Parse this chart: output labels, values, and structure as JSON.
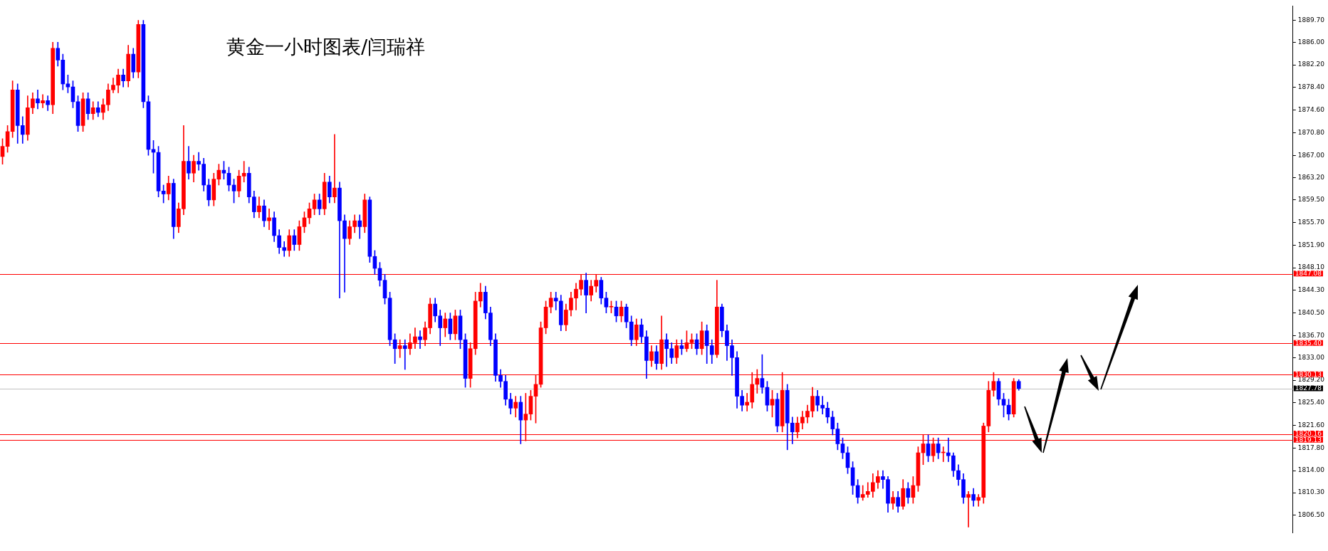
{
  "chart_data": {
    "type": "candlestick",
    "title": "黄金一小时图表/闫瑞祥",
    "categories": [
      null,
      null,
      null,
      null,
      null,
      null,
      null,
      null,
      null,
      null,
      null,
      null,
      null,
      null,
      null,
      null,
      null,
      null,
      null,
      null,
      null,
      null,
      null,
      null,
      null,
      null,
      null,
      null,
      null,
      null,
      null,
      null,
      null,
      null,
      null,
      null,
      null,
      null,
      null,
      null,
      null,
      null,
      null,
      null,
      null,
      null,
      null,
      null,
      null,
      null,
      null,
      null,
      null,
      null,
      null,
      null,
      null,
      null,
      null,
      null,
      null,
      null,
      null,
      null,
      null,
      null,
      null,
      null,
      null,
      null,
      null,
      null,
      null,
      null,
      null,
      null,
      null,
      null,
      null,
      null,
      null,
      null,
      null,
      null,
      null,
      null,
      null,
      null,
      null,
      null,
      null,
      null,
      null,
      null,
      null,
      null,
      null,
      null,
      null,
      null,
      null,
      null,
      null,
      null,
      null,
      null,
      null,
      null,
      null,
      null,
      null,
      null,
      null,
      null,
      null,
      null,
      null,
      null,
      null,
      null,
      null,
      null,
      null,
      null,
      null,
      null,
      null,
      null,
      null,
      null,
      null,
      null,
      null,
      null,
      null,
      null,
      null,
      null,
      null,
      null,
      null,
      null,
      null,
      null,
      null,
      null,
      null,
      null,
      null,
      null,
      null,
      null,
      null,
      null,
      null,
      null,
      null,
      null,
      null,
      null,
      null,
      null,
      null,
      null,
      null,
      null,
      null,
      null,
      null,
      null,
      null,
      null,
      null,
      null,
      null,
      null,
      null,
      null,
      null,
      null,
      null,
      null,
      null,
      null,
      null,
      null,
      null,
      null,
      null,
      null,
      null,
      null,
      null,
      null,
      null,
      null,
      null,
      null,
      null,
      null,
      null,
      null,
      null,
      null,
      null,
      null,
      null,
      null,
      null,
      null,
      null,
      null,
      null,
      null,
      null,
      null,
      null,
      null,
      null,
      null,
      null,
      null,
      null,
      null,
      null,
      null,
      null,
      null,
      null,
      null,
      null,
      null,
      null,
      null,
      null,
      null,
      null,
      null,
      null,
      null,
      null,
      null,
      null,
      null,
      null,
      null,
      null,
      null,
      null,
      null,
      null,
      null,
      null,
      null,
      null,
      null,
      null
    ],
    "ohlc": [
      [
        1866.8,
        1869.8,
        1865.5,
        1868.5
      ],
      [
        1868.5,
        1872.0,
        1867.5,
        1871.0
      ],
      [
        1871.0,
        1879.5,
        1870.0,
        1878.0
      ],
      [
        1878.0,
        1879.0,
        1869.0,
        1872.0
      ],
      [
        1872.0,
        1873.5,
        1869.0,
        1870.5
      ],
      [
        1870.5,
        1877.0,
        1869.5,
        1875.0
      ],
      [
        1875.0,
        1877.5,
        1874.0,
        1876.5
      ],
      [
        1876.5,
        1878.0,
        1874.8,
        1875.8
      ],
      [
        1875.8,
        1877.2,
        1875.0,
        1876.2
      ],
      [
        1876.2,
        1877.0,
        1874.5,
        1875.5
      ],
      [
        1875.5,
        1886.0,
        1874.0,
        1885.0
      ],
      [
        1885.0,
        1886.0,
        1882.0,
        1883.0
      ],
      [
        1883.0,
        1884.0,
        1878.0,
        1879.0
      ],
      [
        1879.0,
        1880.5,
        1877.5,
        1878.5
      ],
      [
        1878.5,
        1879.5,
        1875.0,
        1876.0
      ],
      [
        1876.0,
        1877.0,
        1871.0,
        1872.0
      ],
      [
        1872.0,
        1877.5,
        1871.0,
        1876.5
      ],
      [
        1876.5,
        1877.5,
        1873.0,
        1874.0
      ],
      [
        1874.0,
        1876.0,
        1873.0,
        1875.0
      ],
      [
        1875.0,
        1876.0,
        1873.5,
        1874.2
      ],
      [
        1874.2,
        1876.5,
        1873.0,
        1875.5
      ],
      [
        1875.5,
        1879.0,
        1874.5,
        1878.0
      ],
      [
        1878.0,
        1880.0,
        1877.5,
        1878.8
      ],
      [
        1878.8,
        1881.5,
        1877.5,
        1880.5
      ],
      [
        1880.5,
        1881.5,
        1878.5,
        1879.5
      ],
      [
        1879.5,
        1885.5,
        1878.5,
        1884.0
      ],
      [
        1884.0,
        1885.0,
        1880.0,
        1881.0
      ],
      [
        1881.0,
        1889.7,
        1880.0,
        1889.0
      ],
      [
        1889.0,
        1889.7,
        1875.0,
        1876.0
      ],
      [
        1876.0,
        1877.0,
        1867.0,
        1868.0
      ],
      [
        1868.0,
        1869.5,
        1864.0,
        1867.5
      ],
      [
        1867.5,
        1868.5,
        1860.0,
        1861.0
      ],
      [
        1861.0,
        1862.0,
        1859.0,
        1860.5
      ],
      [
        1860.5,
        1863.5,
        1859.5,
        1862.3
      ],
      [
        1862.3,
        1863.0,
        1853.0,
        1855.0
      ],
      [
        1855.0,
        1859.0,
        1854.0,
        1858.0
      ],
      [
        1858.0,
        1872.0,
        1857.0,
        1866.0
      ],
      [
        1866.0,
        1868.5,
        1863.0,
        1864.0
      ],
      [
        1864.0,
        1867.0,
        1862.5,
        1866.0
      ],
      [
        1866.0,
        1867.5,
        1864.5,
        1865.5
      ],
      [
        1865.5,
        1866.5,
        1861.0,
        1862.0
      ],
      [
        1862.0,
        1863.0,
        1858.5,
        1859.5
      ],
      [
        1859.5,
        1864.0,
        1858.5,
        1863.0
      ],
      [
        1863.0,
        1865.5,
        1862.0,
        1864.5
      ],
      [
        1864.5,
        1866.0,
        1863.0,
        1864.0
      ],
      [
        1864.0,
        1865.0,
        1861.0,
        1862.0
      ],
      [
        1862.0,
        1863.0,
        1859.0,
        1861.0
      ],
      [
        1861.0,
        1864.5,
        1860.0,
        1863.5
      ],
      [
        1863.5,
        1866.0,
        1862.5,
        1864.0
      ],
      [
        1864.0,
        1865.0,
        1859.0,
        1860.0
      ],
      [
        1860.0,
        1861.0,
        1856.5,
        1857.5
      ],
      [
        1857.5,
        1860.0,
        1856.5,
        1858.5
      ],
      [
        1858.5,
        1859.5,
        1855.0,
        1856.0
      ],
      [
        1856.0,
        1858.0,
        1854.5,
        1856.5
      ],
      [
        1856.5,
        1857.5,
        1852.5,
        1853.5
      ],
      [
        1853.5,
        1854.5,
        1850.5,
        1851.5
      ],
      [
        1851.5,
        1852.5,
        1850.0,
        1851.0
      ],
      [
        1851.0,
        1854.5,
        1850.0,
        1853.5
      ],
      [
        1853.5,
        1854.5,
        1851.0,
        1852.0
      ],
      [
        1852.0,
        1856.0,
        1851.0,
        1855.0
      ],
      [
        1855.0,
        1857.5,
        1854.0,
        1856.5
      ],
      [
        1856.5,
        1859.0,
        1855.5,
        1858.0
      ],
      [
        1858.0,
        1860.5,
        1857.0,
        1859.5
      ],
      [
        1859.5,
        1860.5,
        1857.0,
        1858.0
      ],
      [
        1858.0,
        1864.0,
        1857.0,
        1862.5
      ],
      [
        1862.5,
        1863.5,
        1859.0,
        1860.0
      ],
      [
        1860.0,
        1870.5,
        1859.0,
        1861.5
      ],
      [
        1861.5,
        1862.5,
        1843.0,
        1856.0
      ],
      [
        1856.0,
        1857.0,
        1844.0,
        1853.0
      ],
      [
        1853.0,
        1856.0,
        1852.0,
        1855.0
      ],
      [
        1855.0,
        1857.0,
        1854.0,
        1856.0
      ],
      [
        1856.0,
        1857.0,
        1853.0,
        1855.0
      ],
      [
        1855.0,
        1860.5,
        1854.0,
        1859.5
      ],
      [
        1859.5,
        1860.0,
        1849.0,
        1850.0
      ],
      [
        1850.0,
        1851.0,
        1847.0,
        1848.0
      ],
      [
        1848.0,
        1849.0,
        1845.0,
        1846.0
      ],
      [
        1846.0,
        1847.0,
        1842.0,
        1843.0
      ],
      [
        1843.0,
        1844.0,
        1835.0,
        1836.0
      ],
      [
        1836.0,
        1837.0,
        1832.0,
        1834.5
      ],
      [
        1834.5,
        1836.0,
        1833.0,
        1835.0
      ],
      [
        1835.0,
        1836.0,
        1831.0,
        1834.5
      ],
      [
        1834.5,
        1837.0,
        1833.5,
        1835.5
      ],
      [
        1835.5,
        1838.0,
        1834.5,
        1836.5
      ],
      [
        1836.5,
        1837.5,
        1834.5,
        1836.0
      ],
      [
        1836.0,
        1839.0,
        1835.0,
        1838.0
      ],
      [
        1838.0,
        1843.0,
        1837.0,
        1842.0
      ],
      [
        1842.0,
        1843.0,
        1839.0,
        1840.0
      ],
      [
        1840.0,
        1841.0,
        1835.0,
        1838.0
      ],
      [
        1838.0,
        1840.5,
        1836.5,
        1839.5
      ],
      [
        1839.5,
        1840.5,
        1836.0,
        1837.0
      ],
      [
        1837.0,
        1841.0,
        1836.0,
        1840.0
      ],
      [
        1840.0,
        1841.0,
        1834.5,
        1836.0
      ],
      [
        1836.0,
        1837.0,
        1828.0,
        1829.5
      ],
      [
        1829.5,
        1835.5,
        1828.0,
        1834.5
      ],
      [
        1834.5,
        1844.0,
        1833.5,
        1842.5
      ],
      [
        1842.5,
        1845.5,
        1841.5,
        1844.0
      ],
      [
        1844.0,
        1845.0,
        1839.5,
        1840.5
      ],
      [
        1840.5,
        1841.5,
        1835.0,
        1836.0
      ],
      [
        1836.0,
        1837.0,
        1829.0,
        1830.0
      ],
      [
        1830.0,
        1831.0,
        1828.0,
        1829.0
      ],
      [
        1829.0,
        1830.0,
        1825.0,
        1826.0
      ],
      [
        1826.0,
        1827.0,
        1823.5,
        1824.5
      ],
      [
        1824.5,
        1826.5,
        1823.0,
        1825.5
      ],
      [
        1825.5,
        1826.5,
        1818.5,
        1822.5
      ],
      [
        1822.5,
        1827.0,
        1819.0,
        1823.5
      ],
      [
        1823.5,
        1827.5,
        1822.5,
        1826.5
      ],
      [
        1826.5,
        1830.0,
        1822.0,
        1828.5
      ],
      [
        1828.5,
        1839.0,
        1828.0,
        1838.0
      ],
      [
        1838.0,
        1842.5,
        1837.0,
        1841.5
      ],
      [
        1841.5,
        1844.0,
        1840.5,
        1843.0
      ],
      [
        1843.0,
        1844.0,
        1841.0,
        1842.5
      ],
      [
        1842.5,
        1843.5,
        1837.5,
        1838.5
      ],
      [
        1838.5,
        1842.0,
        1837.5,
        1841.0
      ],
      [
        1841.0,
        1844.0,
        1840.0,
        1843.0
      ],
      [
        1843.0,
        1845.5,
        1841.0,
        1844.5
      ],
      [
        1844.5,
        1847.0,
        1843.5,
        1846.0
      ],
      [
        1846.0,
        1847.2,
        1840.5,
        1843.5
      ],
      [
        1843.5,
        1846.0,
        1842.5,
        1845.0
      ],
      [
        1845.0,
        1847.0,
        1844.0,
        1846.0
      ],
      [
        1846.0,
        1846.5,
        1842.0,
        1843.0
      ],
      [
        1843.0,
        1844.0,
        1840.5,
        1841.5
      ],
      [
        1841.5,
        1842.5,
        1840.5,
        1841.5
      ],
      [
        1841.5,
        1842.5,
        1839.0,
        1840.0
      ],
      [
        1840.0,
        1842.5,
        1839.0,
        1841.5
      ],
      [
        1841.5,
        1842.0,
        1838.0,
        1839.0
      ],
      [
        1839.0,
        1840.0,
        1835.0,
        1836.0
      ],
      [
        1836.0,
        1839.5,
        1835.0,
        1838.5
      ],
      [
        1838.5,
        1839.5,
        1835.5,
        1836.5
      ],
      [
        1836.5,
        1837.5,
        1829.5,
        1832.5
      ],
      [
        1832.5,
        1835.0,
        1831.5,
        1834.0
      ],
      [
        1834.0,
        1835.0,
        1831.0,
        1832.0
      ],
      [
        1832.0,
        1840.0,
        1831.0,
        1836.0
      ],
      [
        1836.0,
        1837.0,
        1831.5,
        1834.5
      ],
      [
        1834.5,
        1835.5,
        1832.0,
        1833.0
      ],
      [
        1833.0,
        1836.0,
        1832.0,
        1835.0
      ],
      [
        1835.0,
        1836.0,
        1833.5,
        1834.5
      ],
      [
        1834.5,
        1837.5,
        1834.0,
        1835.5
      ],
      [
        1835.5,
        1837.0,
        1834.5,
        1836.0
      ],
      [
        1836.0,
        1837.0,
        1833.5,
        1834.5
      ],
      [
        1834.5,
        1839.0,
        1833.5,
        1837.5
      ],
      [
        1837.5,
        1838.5,
        1832.0,
        1835.0
      ],
      [
        1835.0,
        1836.0,
        1832.0,
        1833.5
      ],
      [
        1833.5,
        1846.0,
        1833.0,
        1841.5
      ],
      [
        1841.5,
        1842.0,
        1836.5,
        1837.5
      ],
      [
        1837.5,
        1838.5,
        1832.5,
        1835.0
      ],
      [
        1835.0,
        1836.0,
        1830.0,
        1833.0
      ],
      [
        1833.0,
        1834.0,
        1824.5,
        1826.5
      ],
      [
        1826.5,
        1827.5,
        1824.0,
        1825.0
      ],
      [
        1825.0,
        1827.0,
        1824.0,
        1825.5
      ],
      [
        1825.5,
        1830.5,
        1824.5,
        1828.5
      ],
      [
        1828.5,
        1831.0,
        1827.0,
        1829.5
      ],
      [
        1829.5,
        1833.5,
        1827.0,
        1828.0
      ],
      [
        1828.0,
        1829.0,
        1824.0,
        1825.0
      ],
      [
        1825.0,
        1827.5,
        1823.0,
        1826.0
      ],
      [
        1826.0,
        1827.0,
        1820.5,
        1821.5
      ],
      [
        1821.5,
        1830.5,
        1820.5,
        1827.5
      ],
      [
        1827.5,
        1828.5,
        1817.5,
        1822.0
      ],
      [
        1822.0,
        1823.0,
        1818.5,
        1820.5
      ],
      [
        1820.5,
        1823.0,
        1819.5,
        1822.0
      ],
      [
        1822.0,
        1824.0,
        1821.0,
        1823.0
      ],
      [
        1823.0,
        1825.0,
        1822.0,
        1824.0
      ],
      [
        1824.0,
        1828.0,
        1823.0,
        1826.5
      ],
      [
        1826.5,
        1827.5,
        1824.0,
        1825.0
      ],
      [
        1825.0,
        1826.5,
        1823.5,
        1824.5
      ],
      [
        1824.5,
        1825.5,
        1822.0,
        1823.0
      ],
      [
        1823.0,
        1824.0,
        1820.0,
        1821.0
      ],
      [
        1821.0,
        1822.0,
        1817.5,
        1818.5
      ],
      [
        1818.5,
        1819.5,
        1816.0,
        1817.0
      ],
      [
        1817.0,
        1818.0,
        1813.5,
        1814.5
      ],
      [
        1814.5,
        1815.5,
        1810.0,
        1811.5
      ],
      [
        1811.5,
        1812.5,
        1808.5,
        1809.5
      ],
      [
        1809.5,
        1811.5,
        1809.0,
        1810.0
      ],
      [
        1810.0,
        1812.0,
        1809.5,
        1810.5
      ],
      [
        1810.5,
        1813.5,
        1809.5,
        1812.0
      ],
      [
        1812.0,
        1814.0,
        1811.0,
        1813.0
      ],
      [
        1813.0,
        1814.0,
        1811.0,
        1812.5
      ],
      [
        1812.5,
        1813.0,
        1807.0,
        1808.5
      ],
      [
        1808.5,
        1810.5,
        1807.5,
        1809.5
      ],
      [
        1809.5,
        1810.5,
        1807.0,
        1808.0
      ],
      [
        1808.0,
        1812.5,
        1807.5,
        1811.0
      ],
      [
        1811.0,
        1812.0,
        1808.5,
        1809.5
      ],
      [
        1809.5,
        1813.0,
        1808.5,
        1811.5
      ],
      [
        1811.5,
        1818.0,
        1810.5,
        1817.0
      ],
      [
        1817.0,
        1820.0,
        1815.0,
        1818.5
      ],
      [
        1818.5,
        1820.0,
        1815.5,
        1816.5
      ],
      [
        1816.5,
        1819.5,
        1815.5,
        1818.5
      ],
      [
        1818.5,
        1819.5,
        1816.0,
        1817.0
      ],
      [
        1817.0,
        1818.0,
        1815.5,
        1817.0
      ],
      [
        1817.0,
        1819.5,
        1815.5,
        1816.5
      ],
      [
        1816.5,
        1817.0,
        1813.0,
        1814.0
      ],
      [
        1814.0,
        1815.0,
        1811.5,
        1812.5
      ],
      [
        1812.5,
        1813.5,
        1808.5,
        1809.5
      ],
      [
        1809.5,
        1810.5,
        1804.5,
        1810.0
      ],
      [
        1810.0,
        1811.0,
        1808.0,
        1809.0
      ],
      [
        1809.0,
        1810.0,
        1808.0,
        1809.5
      ],
      [
        1809.5,
        1822.0,
        1808.5,
        1821.5
      ],
      [
        1821.5,
        1829.0,
        1820.5,
        1827.5
      ],
      [
        1827.5,
        1830.5,
        1826.5,
        1829.0
      ],
      [
        1829.0,
        1829.5,
        1825.0,
        1826.0
      ],
      [
        1826.0,
        1827.0,
        1823.0,
        1825.0
      ],
      [
        1825.0,
        1826.0,
        1822.5,
        1823.5
      ],
      [
        1823.5,
        1829.5,
        1823.0,
        1829.0
      ],
      [
        1829.0,
        1829.3,
        1827.5,
        1827.8
      ],
      null,
      null,
      null,
      null,
      null,
      null,
      null,
      null,
      null,
      null,
      null,
      null,
      null,
      null,
      null,
      null,
      null,
      null,
      null,
      null,
      null,
      null,
      null,
      null,
      null,
      null,
      null,
      null,
      null,
      null,
      null,
      null,
      null,
      null,
      null,
      null,
      null,
      null,
      null,
      null,
      null,
      null,
      null,
      null,
      null,
      null,
      null,
      null,
      null,
      null,
      null,
      null,
      null,
      null
    ],
    "colors": [
      "#ff0000",
      "#ff0000",
      "#ff0000",
      "#0000ff",
      "#0000ff",
      "#ff0000",
      "#ff0000",
      "#0000ff",
      "#ff0000",
      "#0000ff",
      "#ff0000",
      "#0000ff",
      "#0000ff",
      "#0000ff",
      "#0000ff",
      "#0000ff",
      "#ff0000",
      "#0000ff",
      "#ff0000",
      "#0000ff",
      "#ff0000",
      "#ff0000",
      "#ff0000",
      "#ff0000",
      "#0000ff",
      "#ff0000",
      "#0000ff",
      "#ff0000",
      "#0000ff",
      "#0000ff",
      "#0000ff",
      "#0000ff",
      "#0000ff",
      "#ff0000",
      "#0000ff",
      "#ff0000",
      "#ff0000",
      "#0000ff",
      "#ff0000",
      "#0000ff",
      "#0000ff",
      "#0000ff",
      "#ff0000",
      "#ff0000",
      "#0000ff",
      "#0000ff",
      "#0000ff",
      "#ff0000",
      "#ff0000",
      "#0000ff",
      "#0000ff",
      "#ff0000",
      "#0000ff",
      "#ff0000",
      "#0000ff",
      "#0000ff",
      "#0000ff",
      "#ff0000",
      "#0000ff",
      "#ff0000",
      "#ff0000",
      "#ff0000",
      "#ff0000",
      "#0000ff",
      "#ff0000",
      "#0000ff",
      "#ff0000",
      "#0000ff",
      "#0000ff",
      "#ff0000",
      "#ff0000",
      "#0000ff",
      "#ff0000",
      "#0000ff",
      "#0000ff",
      "#0000ff",
      "#0000ff",
      "#0000ff",
      "#0000ff",
      "#ff0000",
      "#0000ff",
      "#ff0000",
      "#ff0000",
      "#0000ff",
      "#ff0000",
      "#ff0000",
      "#0000ff",
      "#0000ff",
      "#ff0000",
      "#0000ff",
      "#ff0000",
      "#0000ff",
      "#0000ff",
      "#ff0000",
      "#ff0000",
      "#ff0000",
      "#0000ff",
      "#0000ff",
      "#0000ff",
      "#0000ff",
      "#0000ff",
      "#0000ff",
      "#ff0000",
      "#0000ff",
      "#ff0000",
      "#ff0000",
      "#ff0000",
      "#ff0000",
      "#ff0000",
      "#ff0000",
      "#0000ff",
      "#0000ff",
      "#ff0000",
      "#ff0000",
      "#ff0000",
      "#ff0000",
      "#0000ff",
      "#ff0000",
      "#ff0000",
      "#0000ff",
      "#0000ff",
      "#ff0000",
      "#0000ff",
      "#ff0000",
      "#0000ff",
      "#0000ff",
      "#ff0000",
      "#0000ff",
      "#0000ff",
      "#ff0000",
      "#0000ff",
      "#ff0000",
      "#0000ff",
      "#0000ff",
      "#ff0000",
      "#0000ff",
      "#ff0000",
      "#ff0000",
      "#0000ff",
      "#ff0000",
      "#0000ff",
      "#0000ff",
      "#ff0000",
      "#0000ff",
      "#0000ff",
      "#0000ff",
      "#0000ff",
      "#0000ff",
      "#ff0000",
      "#ff0000",
      "#ff0000",
      "#0000ff",
      "#0000ff",
      "#ff0000",
      "#0000ff",
      "#ff0000",
      "#0000ff",
      "#0000ff",
      "#ff0000",
      "#ff0000",
      "#ff0000",
      "#ff0000",
      "#0000ff",
      "#0000ff",
      "#0000ff",
      "#0000ff",
      "#0000ff",
      "#0000ff",
      "#0000ff",
      "#0000ff",
      "#0000ff",
      "#ff0000",
      "#ff0000",
      "#ff0000",
      "#ff0000",
      "#0000ff",
      "#0000ff",
      "#ff0000",
      "#0000ff",
      "#ff0000",
      "#0000ff",
      "#ff0000",
      "#ff0000",
      "#ff0000",
      "#0000ff",
      "#ff0000",
      "#0000ff",
      "#ff0000",
      "#0000ff",
      "#0000ff",
      "#0000ff",
      "#0000ff",
      "#ff0000",
      "#0000ff",
      "#ff0000",
      "#ff0000",
      "#ff0000",
      "#ff0000",
      "#0000ff",
      "#0000ff",
      "#0000ff",
      "#ff0000",
      "#0000ff",
      null,
      null,
      null,
      null,
      null,
      null,
      null,
      null,
      null,
      null,
      null,
      null,
      null,
      null,
      null,
      null,
      null,
      null,
      null,
      null,
      null,
      null,
      null,
      null,
      null,
      null,
      null,
      null,
      null,
      null,
      null,
      null,
      null,
      null,
      null,
      null,
      null,
      null,
      null,
      null,
      null,
      null,
      null,
      null,
      null,
      null,
      null,
      null,
      null,
      null,
      null,
      null,
      null,
      null
    ],
    "ylim": [
      1803.6,
      1892.1
    ],
    "yticks": [
      {
        "value": 1806.5,
        "label": "1806.50"
      },
      {
        "value": 1810.3,
        "label": "1810.30"
      },
      {
        "value": 1814,
        "label": "1814.00"
      },
      {
        "value": 1817.8,
        "label": "1817.80"
      },
      {
        "value": 1821.6,
        "label": "1821.60"
      },
      {
        "value": 1825.4,
        "label": "1825.40"
      },
      {
        "value": 1829.2,
        "label": "1829.20"
      },
      {
        "value": 1833,
        "label": "1833.00"
      },
      {
        "value": 1836.7,
        "label": "1836.70"
      },
      {
        "value": 1840.5,
        "label": "1840.50"
      },
      {
        "value": 1844.3,
        "label": "1844.30"
      },
      {
        "value": 1848.1,
        "label": "1848.10"
      },
      {
        "value": 1851.9,
        "label": "1851.90"
      },
      {
        "value": 1855.7,
        "label": "1855.70"
      },
      {
        "value": 1859.5,
        "label": "1859.50"
      },
      {
        "value": 1863.2,
        "label": "1863.20"
      },
      {
        "value": 1867,
        "label": "1867.00"
      },
      {
        "value": 1870.8,
        "label": "1870.80"
      },
      {
        "value": 1874.6,
        "label": "1874.60"
      },
      {
        "value": 1878.4,
        "label": "1878.40"
      },
      {
        "value": 1882.2,
        "label": "1882.20"
      },
      {
        "value": 1886,
        "label": "1886.00"
      },
      {
        "value": 1889.7,
        "label": "1889.70"
      }
    ],
    "ref_lines": [
      {
        "axis": "y",
        "value": 1847.08,
        "label": "1847.08",
        "color": "#ff0000"
      },
      {
        "axis": "y",
        "value": 1835.4,
        "label": "1835.40",
        "color": "#ff0000"
      },
      {
        "axis": "y",
        "value": 1830.13,
        "label": "1830.13",
        "color": "#ff0000"
      },
      {
        "axis": "y",
        "value": 1827.78,
        "label": "1827.78",
        "color": "#c0c0c0"
      },
      {
        "axis": "y",
        "value": 1820.16,
        "label": "1820.16",
        "color": "#ff0000"
      },
      {
        "axis": "y",
        "value": 1819.13,
        "label": "1819.13",
        "color": "#ff0000"
      }
    ]
  }
}
